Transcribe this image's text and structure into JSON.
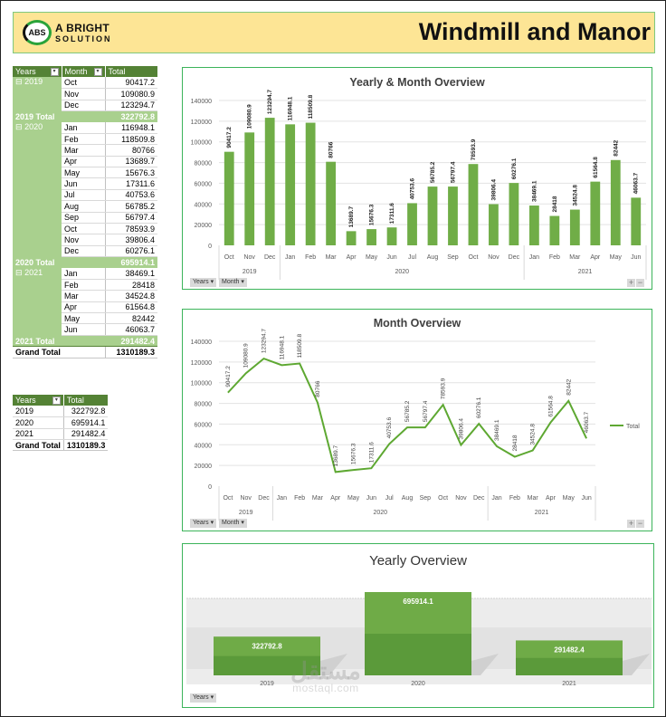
{
  "header": {
    "logo_badge": "ABS",
    "logo_line1": "A BRIGHT",
    "logo_line2": "SOLUTION",
    "title": "Windmill and Manor"
  },
  "colors": {
    "accent": "#70ad47",
    "header_bg": "#fde595",
    "table_header": "#548235",
    "table_band": "#a9d08e",
    "panel_border": "#3cb45a"
  },
  "pivot_table": {
    "headers": [
      "Years",
      "Month",
      "Total"
    ],
    "groups": [
      {
        "year": "2019",
        "rows": [
          [
            "Oct",
            "90417.2"
          ],
          [
            "Nov",
            "109080.9"
          ],
          [
            "Dec",
            "123294.7"
          ]
        ],
        "total_label": "2019 Total",
        "total": "322792.8"
      },
      {
        "year": "2020",
        "rows": [
          [
            "Jan",
            "116948.1"
          ],
          [
            "Feb",
            "118509.8"
          ],
          [
            "Mar",
            "80766"
          ],
          [
            "Apr",
            "13689.7"
          ],
          [
            "May",
            "15676.3"
          ],
          [
            "Jun",
            "17311.6"
          ],
          [
            "Jul",
            "40753.6"
          ],
          [
            "Aug",
            "56785.2"
          ],
          [
            "Sep",
            "56797.4"
          ],
          [
            "Oct",
            "78593.9"
          ],
          [
            "Nov",
            "39806.4"
          ],
          [
            "Dec",
            "60276.1"
          ]
        ],
        "total_label": "2020 Total",
        "total": "695914.1"
      },
      {
        "year": "2021",
        "rows": [
          [
            "Jan",
            "38469.1"
          ],
          [
            "Feb",
            "28418"
          ],
          [
            "Mar",
            "34524.8"
          ],
          [
            "Apr",
            "61564.8"
          ],
          [
            "May",
            "82442"
          ],
          [
            "Jun",
            "46063.7"
          ]
        ],
        "total_label": "2021 Total",
        "total": "291482.4"
      }
    ],
    "grand_total_label": "Grand Total",
    "grand_total": "1310189.3"
  },
  "year_table": {
    "headers": [
      "Years",
      "Total"
    ],
    "rows": [
      [
        "2019",
        "322792.8"
      ],
      [
        "2020",
        "695914.1"
      ],
      [
        "2021",
        "291482.4"
      ]
    ],
    "grand_total_label": "Grand Total",
    "grand_total": "1310189.3"
  },
  "field_buttons": {
    "years": "Years ▾",
    "month": "Month ▾"
  },
  "zoom_buttons": {
    "plus": "+",
    "minus": "−"
  },
  "watermark": {
    "arabic": "مستقل",
    "latin": "mostaql.com"
  },
  "chart_data": [
    {
      "type": "bar",
      "title": "Yearly & Month Overview",
      "categories": [
        "Oct",
        "Nov",
        "Dec",
        "Jan",
        "Feb",
        "Mar",
        "Apr",
        "May",
        "Jun",
        "Jul",
        "Aug",
        "Sep",
        "Oct",
        "Nov",
        "Dec",
        "Jan",
        "Feb",
        "Mar",
        "Apr",
        "May",
        "Jun"
      ],
      "groups": [
        {
          "label": "2019",
          "span": 3
        },
        {
          "label": "2020",
          "span": 12
        },
        {
          "label": "2021",
          "span": 6
        }
      ],
      "values": [
        90417.2,
        109080.9,
        123294.7,
        116948.1,
        118509.8,
        80766,
        13689.7,
        15676.3,
        17311.6,
        40753.6,
        56785.2,
        56797.4,
        78593.9,
        39806.4,
        60276.1,
        38469.1,
        28418,
        34524.8,
        61564.8,
        82442,
        46063.7
      ],
      "labels": [
        "90417.2",
        "109080.9",
        "123294.7",
        "116948.1",
        "118509.8",
        "80766",
        "13689.7",
        "15676.3",
        "17311.6",
        "40753.6",
        "56785.2",
        "56797.4",
        "78593.9",
        "39806.4",
        "60276.1",
        "38469.1",
        "28418",
        "34524.8",
        "61564.8",
        "82442",
        "46063.7"
      ],
      "yticks": [
        "0",
        "20000",
        "40000",
        "60000",
        "80000",
        "100000",
        "120000",
        "140000"
      ],
      "ylim": [
        0,
        140000
      ],
      "xlabel": "",
      "ylabel": "",
      "grid": true,
      "color": "#70ad47"
    },
    {
      "type": "line",
      "title": "Month Overview",
      "categories": [
        "Oct",
        "Nov",
        "Dec",
        "Jan",
        "Feb",
        "Mar",
        "Apr",
        "May",
        "Jun",
        "Jul",
        "Aug",
        "Sep",
        "Oct",
        "Nov",
        "Dec",
        "Jan",
        "Feb",
        "Mar",
        "Apr",
        "May",
        "Jun"
      ],
      "groups": [
        {
          "label": "2019",
          "span": 3
        },
        {
          "label": "2020",
          "span": 12
        },
        {
          "label": "2021",
          "span": 6
        }
      ],
      "series": [
        {
          "name": "Total",
          "values": [
            90417.2,
            109080.9,
            123294.7,
            116948.1,
            118509.8,
            80766,
            13689.7,
            15676.3,
            17311.6,
            40753.6,
            56785.2,
            56797.4,
            78593.9,
            39806.4,
            60276.1,
            38469.1,
            28418,
            34524.8,
            61564.8,
            82442,
            46063.7
          ]
        }
      ],
      "labels": [
        "90417.2",
        "109080.9",
        "123294.7",
        "116948.1",
        "118509.8",
        "80766",
        "13689.7",
        "15676.3",
        "17311.6",
        "40753.6",
        "56785.2",
        "56797.4",
        "78593.9",
        "39806.4",
        "60276.1",
        "38469.1",
        "28418",
        "34524.8",
        "61564.8",
        "82442",
        "46063.7"
      ],
      "yticks": [
        "0",
        "20000",
        "40000",
        "60000",
        "80000",
        "100000",
        "120000",
        "140000"
      ],
      "ylim": [
        0,
        140000
      ],
      "legend": {
        "position": "right",
        "entries": [
          "Total"
        ]
      },
      "grid": true,
      "color": "#5ea832"
    },
    {
      "type": "bar",
      "title": "Yearly Overview",
      "categories": [
        "2019",
        "2020",
        "2021"
      ],
      "values": [
        322792.8,
        695914.1,
        291482.4
      ],
      "labels": [
        "322792.8",
        "695914.1",
        "291482.4"
      ],
      "style": "3d",
      "grid": false,
      "color": "#70ad47"
    }
  ]
}
